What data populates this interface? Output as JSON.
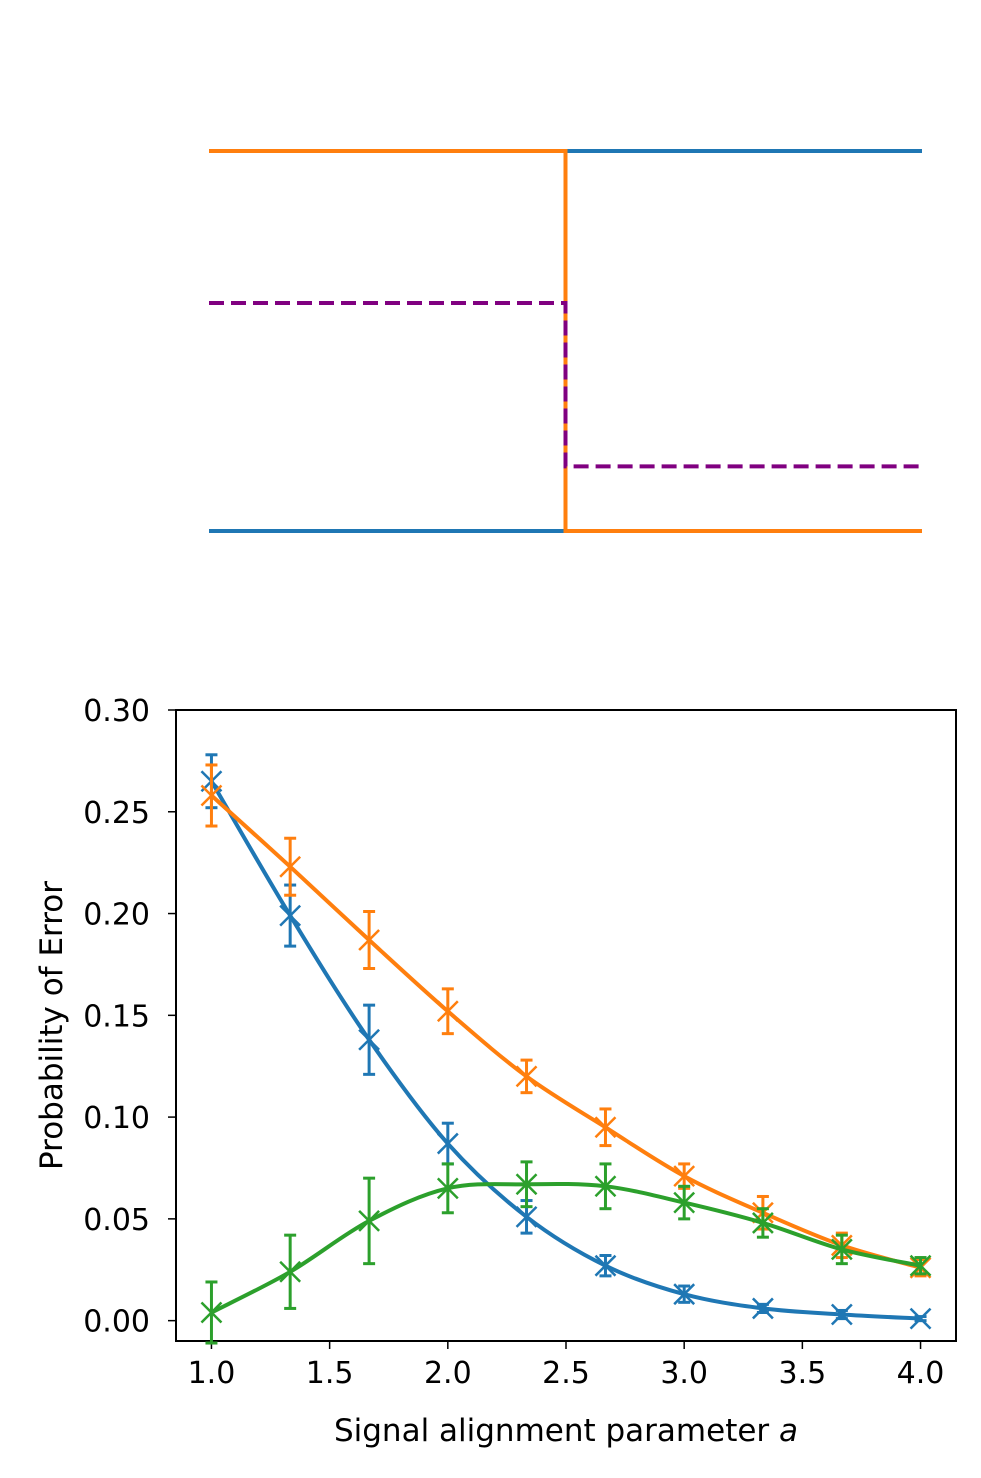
{
  "chart_data": [
    {
      "type": "line",
      "title": "",
      "xlabel": "",
      "ylabel": "",
      "axes_visible": false,
      "xlim": [
        0,
        1
      ],
      "ylim": [
        0,
        1
      ],
      "colors": {
        "series_a": "#1f77b4",
        "series_b": "#ff7f0e",
        "mix": "#800080"
      },
      "series": [
        {
          "color": "#1f77b4",
          "style": "solid",
          "points": [
            [
              0,
              0
            ],
            [
              0.5,
              0
            ],
            [
              0.5,
              1
            ],
            [
              1,
              1
            ]
          ]
        },
        {
          "color": "#ff7f0e",
          "style": "solid",
          "points": [
            [
              0,
              1
            ],
            [
              0.5,
              1
            ],
            [
              0.5,
              0
            ],
            [
              1,
              0
            ]
          ]
        },
        {
          "color": "#800080",
          "style": "dashed",
          "points": [
            [
              0,
              0.6
            ],
            [
              0.5,
              0.6
            ],
            [
              0.5,
              0.17
            ],
            [
              1,
              0.17
            ]
          ]
        }
      ]
    },
    {
      "type": "line",
      "title": "",
      "xlabel": "Signal alignment parameter",
      "xlabel_var": "a",
      "ylabel": "Probability of Error",
      "xlim": [
        0.85,
        4.15
      ],
      "ylim": [
        -0.01,
        0.3
      ],
      "xticks": [
        "1.0",
        "1.5",
        "2.0",
        "2.5",
        "3.0",
        "3.5",
        "4.0"
      ],
      "yticks": [
        "0.00",
        "0.05",
        "0.10",
        "0.15",
        "0.20",
        "0.25",
        "0.30"
      ],
      "grid": false,
      "legend": "none",
      "marker": "x",
      "x": [
        1.0,
        1.333,
        1.667,
        2.0,
        2.333,
        2.667,
        3.0,
        3.333,
        3.667,
        4.0
      ],
      "series": [
        {
          "color": "#1f77b4",
          "values": [
            0.265,
            0.199,
            0.138,
            0.087,
            0.051,
            0.027,
            0.013,
            0.006,
            0.003,
            0.001
          ],
          "errors": [
            0.013,
            0.015,
            0.017,
            0.01,
            0.008,
            0.005,
            0.004,
            0.002,
            0.002,
            0.001
          ]
        },
        {
          "color": "#ff7f0e",
          "values": [
            0.258,
            0.223,
            0.187,
            0.152,
            0.12,
            0.095,
            0.071,
            0.053,
            0.037,
            0.026
          ],
          "errors": [
            0.015,
            0.014,
            0.014,
            0.011,
            0.008,
            0.009,
            0.006,
            0.008,
            0.006,
            0.004
          ]
        },
        {
          "color": "#2ca02c",
          "values": [
            0.004,
            0.024,
            0.049,
            0.065,
            0.067,
            0.066,
            0.058,
            0.048,
            0.035,
            0.027
          ],
          "errors": [
            0.015,
            0.018,
            0.021,
            0.012,
            0.011,
            0.011,
            0.008,
            0.007,
            0.007,
            0.004
          ]
        }
      ]
    }
  ]
}
